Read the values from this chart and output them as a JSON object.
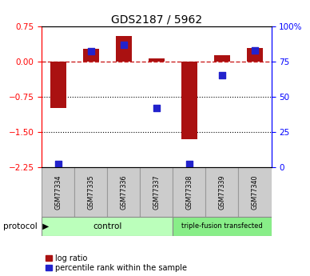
{
  "title": "GDS2187 / 5962",
  "samples": [
    "GSM77334",
    "GSM77335",
    "GSM77336",
    "GSM77337",
    "GSM77338",
    "GSM77339",
    "GSM77340"
  ],
  "log_ratio": [
    -1.0,
    0.27,
    0.55,
    0.07,
    -1.65,
    0.13,
    0.28
  ],
  "percentile_rank": [
    2,
    82,
    87,
    42,
    2,
    65,
    83
  ],
  "ylim_left": [
    -2.25,
    0.75
  ],
  "ylim_right": [
    0,
    100
  ],
  "yticks_left": [
    0.75,
    0,
    -0.75,
    -1.5,
    -2.25
  ],
  "yticks_right": [
    100,
    75,
    50,
    25,
    0
  ],
  "hlines_dotted": [
    -0.75,
    -1.5
  ],
  "hline_dashed": 0,
  "bar_color": "#aa1111",
  "dot_color": "#2222cc",
  "bar_width": 0.5,
  "dot_size": 28,
  "control_label": "control",
  "triple_fusion_label": "triple-fusion transfected",
  "protocol_label": "protocol",
  "legend_log_ratio": "log ratio",
  "legend_percentile": "percentile rank within the sample",
  "control_color": "#bbffbb",
  "triple_fusion_color": "#88ee88",
  "label_box_color": "#cccccc",
  "label_box_edge": "#999999",
  "title_fontsize": 10,
  "tick_fontsize": 7.5,
  "sample_fontsize": 5.8,
  "legend_fontsize": 7
}
